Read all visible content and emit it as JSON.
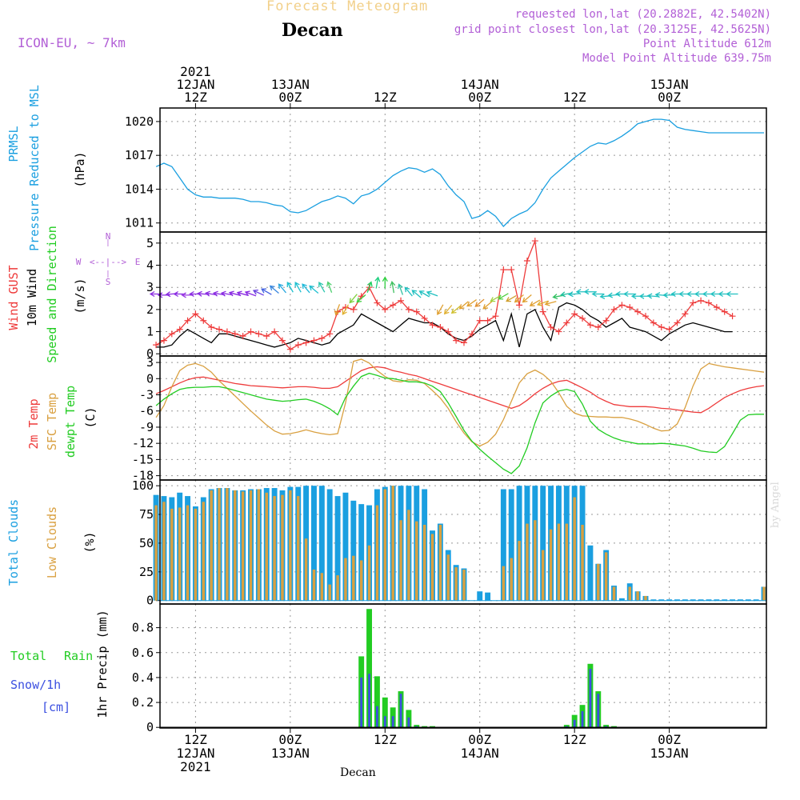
{
  "header": {
    "title": "Forecast Meteogram",
    "location": "Decan",
    "model": "ICON-EU, ~ 7km",
    "requested": "requested lon,lat (20.2882E, 42.5402N)",
    "gridpoint": "grid point closest lon,lat (20.3125E, 42.5625N)",
    "point_alt": "Point Altitude 612m",
    "model_alt": "Model Point Altitude 639.75m"
  },
  "credit": "by Angel",
  "footer_label": "Decan",
  "colors": {
    "pressure": "#1a9fe0",
    "gust": "#ee3b3b",
    "wind": "#000000",
    "t2m": "#ee3b3b",
    "sfc": "#d9a040",
    "dew": "#22cc22",
    "total_cloud": "#1a9fe0",
    "low_cloud": "#d9a040",
    "rain": "#22cc22",
    "snow": "#3b4fe0",
    "purple": "#b25fd6"
  },
  "time_axis": {
    "top_ticks": [
      {
        "label": "2021\n12JAN\n12Z",
        "h": 12
      },
      {
        "label": "13JAN\n00Z",
        "h": 24
      },
      {
        "label": "12Z",
        "h": 36
      },
      {
        "label": "14JAN\n00Z",
        "h": 48
      },
      {
        "label": "12Z",
        "h": 60
      },
      {
        "label": "15JAN\n00Z",
        "h": 72
      }
    ],
    "bottom_ticks": [
      {
        "label": "12Z\n12JAN\n2021",
        "h": 12
      },
      {
        "label": "00Z\n13JAN",
        "h": 24
      },
      {
        "label": "12Z",
        "h": 36
      },
      {
        "label": "00Z\n14JAN",
        "h": 48
      },
      {
        "label": "12Z",
        "h": 60
      },
      {
        "label": "00Z\n15JAN",
        "h": 72
      }
    ]
  },
  "chart_data": [
    {
      "type": "line",
      "name": "pressure",
      "ylabels": [
        "PRMSL",
        "Pressure Reduced to MSL",
        "(hPa)"
      ],
      "yticks": [
        1011,
        1014,
        1017,
        1020
      ],
      "ylim": [
        1010.2,
        1021.2
      ],
      "x": [
        7,
        8,
        9,
        10,
        11,
        12,
        13,
        14,
        15,
        16,
        17,
        18,
        19,
        20,
        21,
        22,
        23,
        24,
        25,
        26,
        27,
        28,
        29,
        30,
        31,
        32,
        33,
        34,
        35,
        36,
        37,
        38,
        39,
        40,
        41,
        42,
        43,
        44,
        45,
        46,
        47,
        48,
        49,
        50,
        51,
        52,
        53,
        54,
        55,
        56,
        57,
        58,
        59,
        60,
        61,
        62,
        63,
        64,
        65,
        66,
        67,
        68,
        69,
        70,
        71,
        72,
        73,
        74,
        75,
        76,
        77,
        78,
        79,
        80,
        81,
        82,
        83,
        84
      ],
      "y": [
        1016.0,
        1016.3,
        1016.0,
        1015.0,
        1014.0,
        1013.5,
        1013.3,
        1013.3,
        1013.2,
        1013.2,
        1013.2,
        1013.1,
        1012.9,
        1012.9,
        1012.8,
        1012.6,
        1012.5,
        1012.0,
        1011.9,
        1012.1,
        1012.5,
        1012.9,
        1013.1,
        1013.4,
        1013.2,
        1012.7,
        1013.4,
        1013.6,
        1014.0,
        1014.6,
        1015.2,
        1015.6,
        1015.9,
        1015.8,
        1015.5,
        1015.8,
        1015.3,
        1014.3,
        1013.5,
        1012.9,
        1011.4,
        1011.6,
        1012.1,
        1011.6,
        1010.7,
        1011.4,
        1011.8,
        1012.1,
        1012.8,
        1014.0,
        1015.0,
        1015.6,
        1016.2,
        1016.8,
        1017.3,
        1017.8,
        1018.1,
        1018.0,
        1018.3,
        1018.7,
        1019.2,
        1019.8,
        1020.0,
        1020.2,
        1020.2,
        1020.1,
        1019.5,
        1019.3,
        1019.2,
        1019.1,
        1019.0,
        1019.0,
        1019.0,
        1019.0,
        1019.0,
        1019.0,
        1019.0,
        1019.0
      ]
    },
    {
      "type": "line",
      "name": "wind",
      "ylabels": [
        "Wind GUST",
        "10m Wind",
        "Speed and Direction",
        "(m/s)"
      ],
      "yticks": [
        0,
        1,
        2,
        3,
        4,
        5
      ],
      "ylim": [
        -0.1,
        5.5
      ],
      "compass": {
        "n": "N",
        "w": "W",
        "e": "E",
        "s": "S",
        "arrow_h": "<--|-->",
        "arrow_v": "|"
      },
      "x": [
        7,
        8,
        9,
        10,
        11,
        12,
        13,
        14,
        15,
        16,
        17,
        18,
        19,
        20,
        21,
        22,
        23,
        24,
        25,
        26,
        27,
        28,
        29,
        30,
        31,
        32,
        33,
        34,
        35,
        36,
        37,
        38,
        39,
        40,
        41,
        42,
        43,
        44,
        45,
        46,
        47,
        48,
        49,
        50,
        51,
        52,
        53,
        54,
        55,
        56,
        57,
        58,
        59,
        60,
        61,
        62,
        63,
        64,
        65,
        66,
        67,
        68,
        69,
        70,
        71,
        72,
        73,
        74,
        75,
        76,
        77,
        78,
        79,
        80
      ],
      "gust": [
        0.4,
        0.6,
        0.9,
        1.1,
        1.5,
        1.8,
        1.5,
        1.2,
        1.1,
        1.0,
        0.9,
        0.8,
        1.0,
        0.9,
        0.8,
        1.0,
        0.6,
        0.2,
        0.4,
        0.5,
        0.6,
        0.7,
        0.9,
        1.9,
        2.1,
        2.0,
        2.6,
        3.0,
        2.3,
        2.0,
        2.2,
        2.4,
        2.0,
        1.9,
        1.6,
        1.3,
        1.2,
        1.0,
        0.6,
        0.5,
        0.9,
        1.5,
        1.5,
        1.7,
        3.8,
        3.8,
        2.2,
        4.2,
        5.1,
        1.9,
        1.2,
        1.0,
        1.4,
        1.8,
        1.6,
        1.3,
        1.2,
        1.5,
        2.0,
        2.2,
        2.1,
        1.9,
        1.7,
        1.4,
        1.2,
        1.1,
        1.4,
        1.8,
        2.3,
        2.4,
        2.3,
        2.1,
        1.9,
        1.7
      ],
      "speed": [
        0.3,
        0.3,
        0.4,
        0.8,
        1.1,
        0.9,
        0.7,
        0.5,
        0.9,
        0.9,
        0.8,
        0.7,
        0.6,
        0.5,
        0.4,
        0.3,
        0.4,
        0.5,
        0.7,
        0.6,
        0.5,
        0.4,
        0.5,
        0.9,
        1.1,
        1.3,
        1.8,
        1.6,
        1.4,
        1.2,
        1.0,
        1.3,
        1.6,
        1.5,
        1.4,
        1.4,
        1.2,
        0.9,
        0.7,
        0.6,
        0.8,
        1.1,
        1.3,
        1.5,
        0.6,
        1.8,
        0.3,
        1.8,
        2.0,
        1.2,
        0.6,
        2.1,
        2.3,
        2.2,
        2.0,
        1.7,
        1.5,
        1.2,
        1.4,
        1.6,
        1.2,
        1.1,
        1.0,
        0.8,
        0.6,
        0.9,
        1.1,
        1.3,
        1.4,
        1.3,
        1.2,
        1.1,
        1.0,
        1.0
      ],
      "arrows_y": [
        2.7,
        2.65,
        2.7,
        2.7,
        2.65,
        2.7,
        2.7,
        2.7,
        2.7,
        2.7,
        2.7,
        2.7,
        2.7,
        2.75,
        2.8,
        2.9,
        2.95,
        3.0,
        3.0,
        2.95,
        2.9,
        3.0,
        3.0,
        2.0,
        2.0,
        2.5,
        2.5,
        3.0,
        3.2,
        3.2,
        3.0,
        2.9,
        2.8,
        2.7,
        2.7,
        2.7,
        2.0,
        2.0,
        2.0,
        2.2,
        2.3,
        2.3,
        2.2,
        2.5,
        2.6,
        2.5,
        2.5,
        2.5,
        2.3,
        2.3,
        2.3,
        2.6,
        2.7,
        2.7,
        2.8,
        2.8,
        2.7,
        2.6,
        2.65,
        2.7,
        2.7,
        2.6,
        2.6,
        2.6,
        2.65,
        2.65,
        2.7,
        2.7,
        2.7,
        2.7,
        2.7,
        2.7,
        2.7,
        2.7
      ],
      "dir": [
        270,
        270,
        265,
        270,
        270,
        270,
        275,
        280,
        280,
        280,
        285,
        285,
        290,
        295,
        300,
        310,
        320,
        330,
        330,
        320,
        310,
        330,
        340,
        200,
        210,
        220,
        230,
        20,
        10,
        0,
        350,
        340,
        320,
        310,
        300,
        290,
        210,
        220,
        230,
        230,
        235,
        230,
        230,
        240,
        240,
        240,
        230,
        230,
        240,
        250,
        255,
        260,
        260,
        265,
        270,
        270,
        270,
        265,
        265,
        270,
        270,
        270,
        270,
        275,
        275,
        270,
        270,
        270,
        270,
        270,
        270,
        270,
        270,
        270
      ],
      "arrow_colors": [
        "#8a2be2",
        "#8a2be2",
        "#8a2be2",
        "#8a2be2",
        "#9a3be2",
        "#8a2be2",
        "#8a2be2",
        "#8a2be2",
        "#8a2be2",
        "#8a2be2",
        "#8a2be2",
        "#8a2be2",
        "#8a2be2",
        "#6a40e0",
        "#4060e0",
        "#3a88e0",
        "#2aa8e0",
        "#20c0d0",
        "#20c0d0",
        "#20b8d8",
        "#20c0d0",
        "#30c8b0",
        "#50d070",
        "#e0a030",
        "#e0b030",
        "#80d040",
        "#40d040",
        "#20d060",
        "#20d080",
        "#30d040",
        "#40c060",
        "#30c0a0",
        "#20c0c0",
        "#20c0c0",
        "#20c0c0",
        "#20c0c0",
        "#e0a030",
        "#e0b030",
        "#d0c030",
        "#e0a030",
        "#e0a030",
        "#e09030",
        "#e0a030",
        "#a0d040",
        "#50d040",
        "#d0a030",
        "#e0a030",
        "#e0a030",
        "#e0a030",
        "#e0b030",
        "#e0a030",
        "#30c060",
        "#20c0a0",
        "#20c0c0",
        "#20c0c0",
        "#20c0c0",
        "#20c0c0",
        "#20c0c0",
        "#20c0c0",
        "#20c0c0",
        "#20c0c0",
        "#20c0c0",
        "#20c0c0",
        "#20c0c0",
        "#20c0c0",
        "#20c0c0",
        "#20c0c0",
        "#20c0c0",
        "#20c0c0",
        "#20c0c0",
        "#20c0c0",
        "#20c0c0",
        "#20c0c0",
        "#20c0c0"
      ]
    },
    {
      "type": "line",
      "name": "temperature",
      "ylabels": [
        "2m Temp",
        "SFC Temp",
        "dewpt Temp",
        "(C)"
      ],
      "yticks": [
        3,
        0,
        -3,
        -6,
        -9,
        -12,
        -15,
        -18
      ],
      "ylim": [
        -18.8,
        4.2
      ],
      "x": [
        7,
        8,
        9,
        10,
        11,
        12,
        13,
        14,
        15,
        16,
        17,
        18,
        19,
        20,
        21,
        22,
        23,
        24,
        25,
        26,
        27,
        28,
        29,
        30,
        31,
        32,
        33,
        34,
        35,
        36,
        37,
        38,
        39,
        40,
        41,
        42,
        43,
        44,
        45,
        46,
        47,
        48,
        49,
        50,
        51,
        52,
        53,
        54,
        55,
        56,
        57,
        58,
        59,
        60,
        61,
        62,
        63,
        64,
        65,
        66,
        67,
        68,
        69,
        70,
        71,
        72,
        73,
        74,
        75,
        76,
        77,
        78,
        79,
        80,
        81,
        82,
        83,
        84
      ],
      "t2m": [
        -2.8,
        -2.2,
        -1.5,
        -0.8,
        -0.2,
        0.2,
        0.3,
        0.0,
        -0.3,
        -0.6,
        -0.9,
        -1.1,
        -1.3,
        -1.4,
        -1.5,
        -1.6,
        -1.7,
        -1.6,
        -1.5,
        -1.5,
        -1.6,
        -1.8,
        -1.8,
        -1.5,
        -0.5,
        0.5,
        1.5,
        2.0,
        2.2,
        2.0,
        1.5,
        1.2,
        0.8,
        0.5,
        0.0,
        -0.5,
        -1.0,
        -1.5,
        -2.0,
        -2.5,
        -3.0,
        -3.5,
        -4.0,
        -4.5,
        -5.0,
        -5.5,
        -5.0,
        -4.0,
        -2.8,
        -1.8,
        -1.0,
        -0.5,
        -0.3,
        -1.0,
        -1.7,
        -2.5,
        -3.5,
        -4.2,
        -4.8,
        -5.0,
        -5.2,
        -5.2,
        -5.2,
        -5.3,
        -5.5,
        -5.6,
        -5.8,
        -6.0,
        -6.2,
        -6.3,
        -5.5,
        -4.5,
        -3.5,
        -2.8,
        -2.2,
        -1.8,
        -1.5,
        -1.3
      ],
      "sfc": [
        -7.2,
        -5.0,
        -1.5,
        1.5,
        2.5,
        2.8,
        2.3,
        1.2,
        -0.4,
        -1.8,
        -3.2,
        -4.6,
        -6.0,
        -7.3,
        -8.6,
        -9.7,
        -10.3,
        -10.2,
        -9.9,
        -9.5,
        -9.9,
        -10.2,
        -10.4,
        -10.2,
        -4.5,
        3.2,
        3.6,
        2.9,
        1.5,
        0.4,
        -0.4,
        -0.6,
        -0.2,
        -0.3,
        -0.9,
        -2.2,
        -3.6,
        -5.5,
        -8.0,
        -10.1,
        -11.7,
        -12.5,
        -11.8,
        -10.3,
        -7.6,
        -4.2,
        -0.8,
        0.9,
        1.6,
        0.8,
        -0.5,
        -2.6,
        -5.1,
        -6.4,
        -6.9,
        -7.0,
        -7.1,
        -7.1,
        -7.2,
        -7.2,
        -7.5,
        -7.9,
        -8.5,
        -9.2,
        -9.7,
        -9.6,
        -8.4,
        -5.4,
        -1.4,
        1.8,
        2.8,
        2.5,
        2.2,
        2.0,
        1.8,
        1.6,
        1.4,
        1.2
      ],
      "dew": [
        -5.0,
        -3.8,
        -2.8,
        -2.0,
        -1.7,
        -1.6,
        -1.6,
        -1.5,
        -1.5,
        -1.8,
        -2.2,
        -2.6,
        -3.0,
        -3.4,
        -3.8,
        -4.0,
        -4.2,
        -4.1,
        -3.9,
        -3.8,
        -4.2,
        -4.8,
        -5.6,
        -6.7,
        -3.5,
        -1.4,
        0.4,
        1.0,
        0.6,
        0.1,
        0.0,
        -0.3,
        -0.6,
        -0.6,
        -0.8,
        -1.4,
        -2.4,
        -4.5,
        -7.0,
        -9.6,
        -11.6,
        -13.1,
        -14.4,
        -15.6,
        -16.8,
        -17.6,
        -16.2,
        -12.8,
        -8.2,
        -4.5,
        -3.2,
        -2.3,
        -2.0,
        -2.4,
        -4.7,
        -7.9,
        -9.4,
        -10.3,
        -11.0,
        -11.5,
        -11.8,
        -12.1,
        -12.1,
        -12.1,
        -12.0,
        -12.1,
        -12.3,
        -12.5,
        -12.9,
        -13.4,
        -13.6,
        -13.7,
        -12.6,
        -10.2,
        -7.7,
        -6.7,
        -6.6,
        -6.6
      ]
    },
    {
      "type": "bar",
      "name": "clouds",
      "ylabels": [
        "Total Clouds",
        "Low Clouds",
        "(%)"
      ],
      "yticks": [
        0,
        25,
        50,
        75,
        100
      ],
      "ylim": [
        -3,
        105
      ],
      "x": [
        7,
        8,
        9,
        10,
        11,
        12,
        13,
        14,
        15,
        16,
        17,
        18,
        19,
        20,
        21,
        22,
        23,
        24,
        25,
        26,
        27,
        28,
        29,
        30,
        31,
        32,
        33,
        34,
        35,
        36,
        37,
        38,
        39,
        40,
        41,
        42,
        43,
        44,
        45,
        46,
        47,
        48,
        49,
        50,
        51,
        52,
        53,
        54,
        55,
        56,
        57,
        58,
        59,
        60,
        61,
        62,
        63,
        64,
        65,
        66,
        67,
        68,
        69,
        70,
        71,
        72,
        73,
        74,
        75,
        76,
        77,
        78,
        79,
        80,
        81,
        82,
        83,
        84
      ],
      "total": [
        92,
        91,
        90,
        94,
        91,
        82,
        90,
        97,
        98,
        98,
        96,
        96,
        97,
        97,
        98,
        98,
        96,
        99,
        99,
        100,
        100,
        100,
        97,
        91,
        94,
        87,
        84,
        83,
        97,
        99,
        100,
        100,
        100,
        100,
        97,
        61,
        67,
        44,
        31,
        28,
        0,
        8,
        7,
        0,
        97,
        97,
        100,
        100,
        100,
        100,
        100,
        100,
        100,
        100,
        100,
        48,
        32,
        44,
        13,
        2,
        15,
        8,
        4,
        1,
        1,
        1,
        1,
        1,
        1,
        1,
        1,
        1,
        1,
        1,
        1,
        1,
        1,
        12
      ],
      "low": [
        83,
        86,
        80,
        81,
        83,
        80,
        86,
        96,
        98,
        98,
        96,
        95,
        96,
        97,
        94,
        91,
        92,
        96,
        91,
        54,
        27,
        24,
        14,
        22,
        37,
        39,
        35,
        48,
        83,
        97,
        100,
        70,
        79,
        69,
        66,
        58,
        66,
        40,
        29,
        27,
        0,
        0,
        0,
        0,
        30,
        37,
        52,
        67,
        70,
        44,
        62,
        67,
        67,
        90,
        66,
        0,
        32,
        42,
        12,
        0,
        12,
        8,
        4,
        0,
        0,
        0,
        0,
        0,
        0,
        0,
        0,
        0,
        0,
        0,
        0,
        0,
        0,
        12
      ]
    },
    {
      "type": "bar",
      "name": "precip",
      "ylabels": [
        "Total Rain",
        "Snow/1h",
        "[cm]",
        "1hr Precip (mm)"
      ],
      "yticks": [
        0,
        0.2,
        0.4,
        0.6,
        0.8
      ],
      "ylim": [
        -0.005,
        0.99
      ],
      "x": [
        33,
        34,
        35,
        36,
        37,
        38,
        39,
        40,
        41,
        42,
        59,
        60,
        61,
        62,
        63,
        64,
        65
      ],
      "rain": [
        0.57,
        0.95,
        0.41,
        0.24,
        0.16,
        0.29,
        0.14,
        0.02,
        0.01,
        0.01,
        0.02,
        0.1,
        0.18,
        0.51,
        0.29,
        0.02,
        0.01
      ],
      "snow": [
        0.4,
        0.43,
        0.17,
        0.09,
        0.09,
        0.27,
        0.08,
        0.01,
        0.0,
        0.0,
        0.01,
        0.06,
        0.13,
        0.47,
        0.27,
        0.01,
        0.0
      ]
    }
  ]
}
